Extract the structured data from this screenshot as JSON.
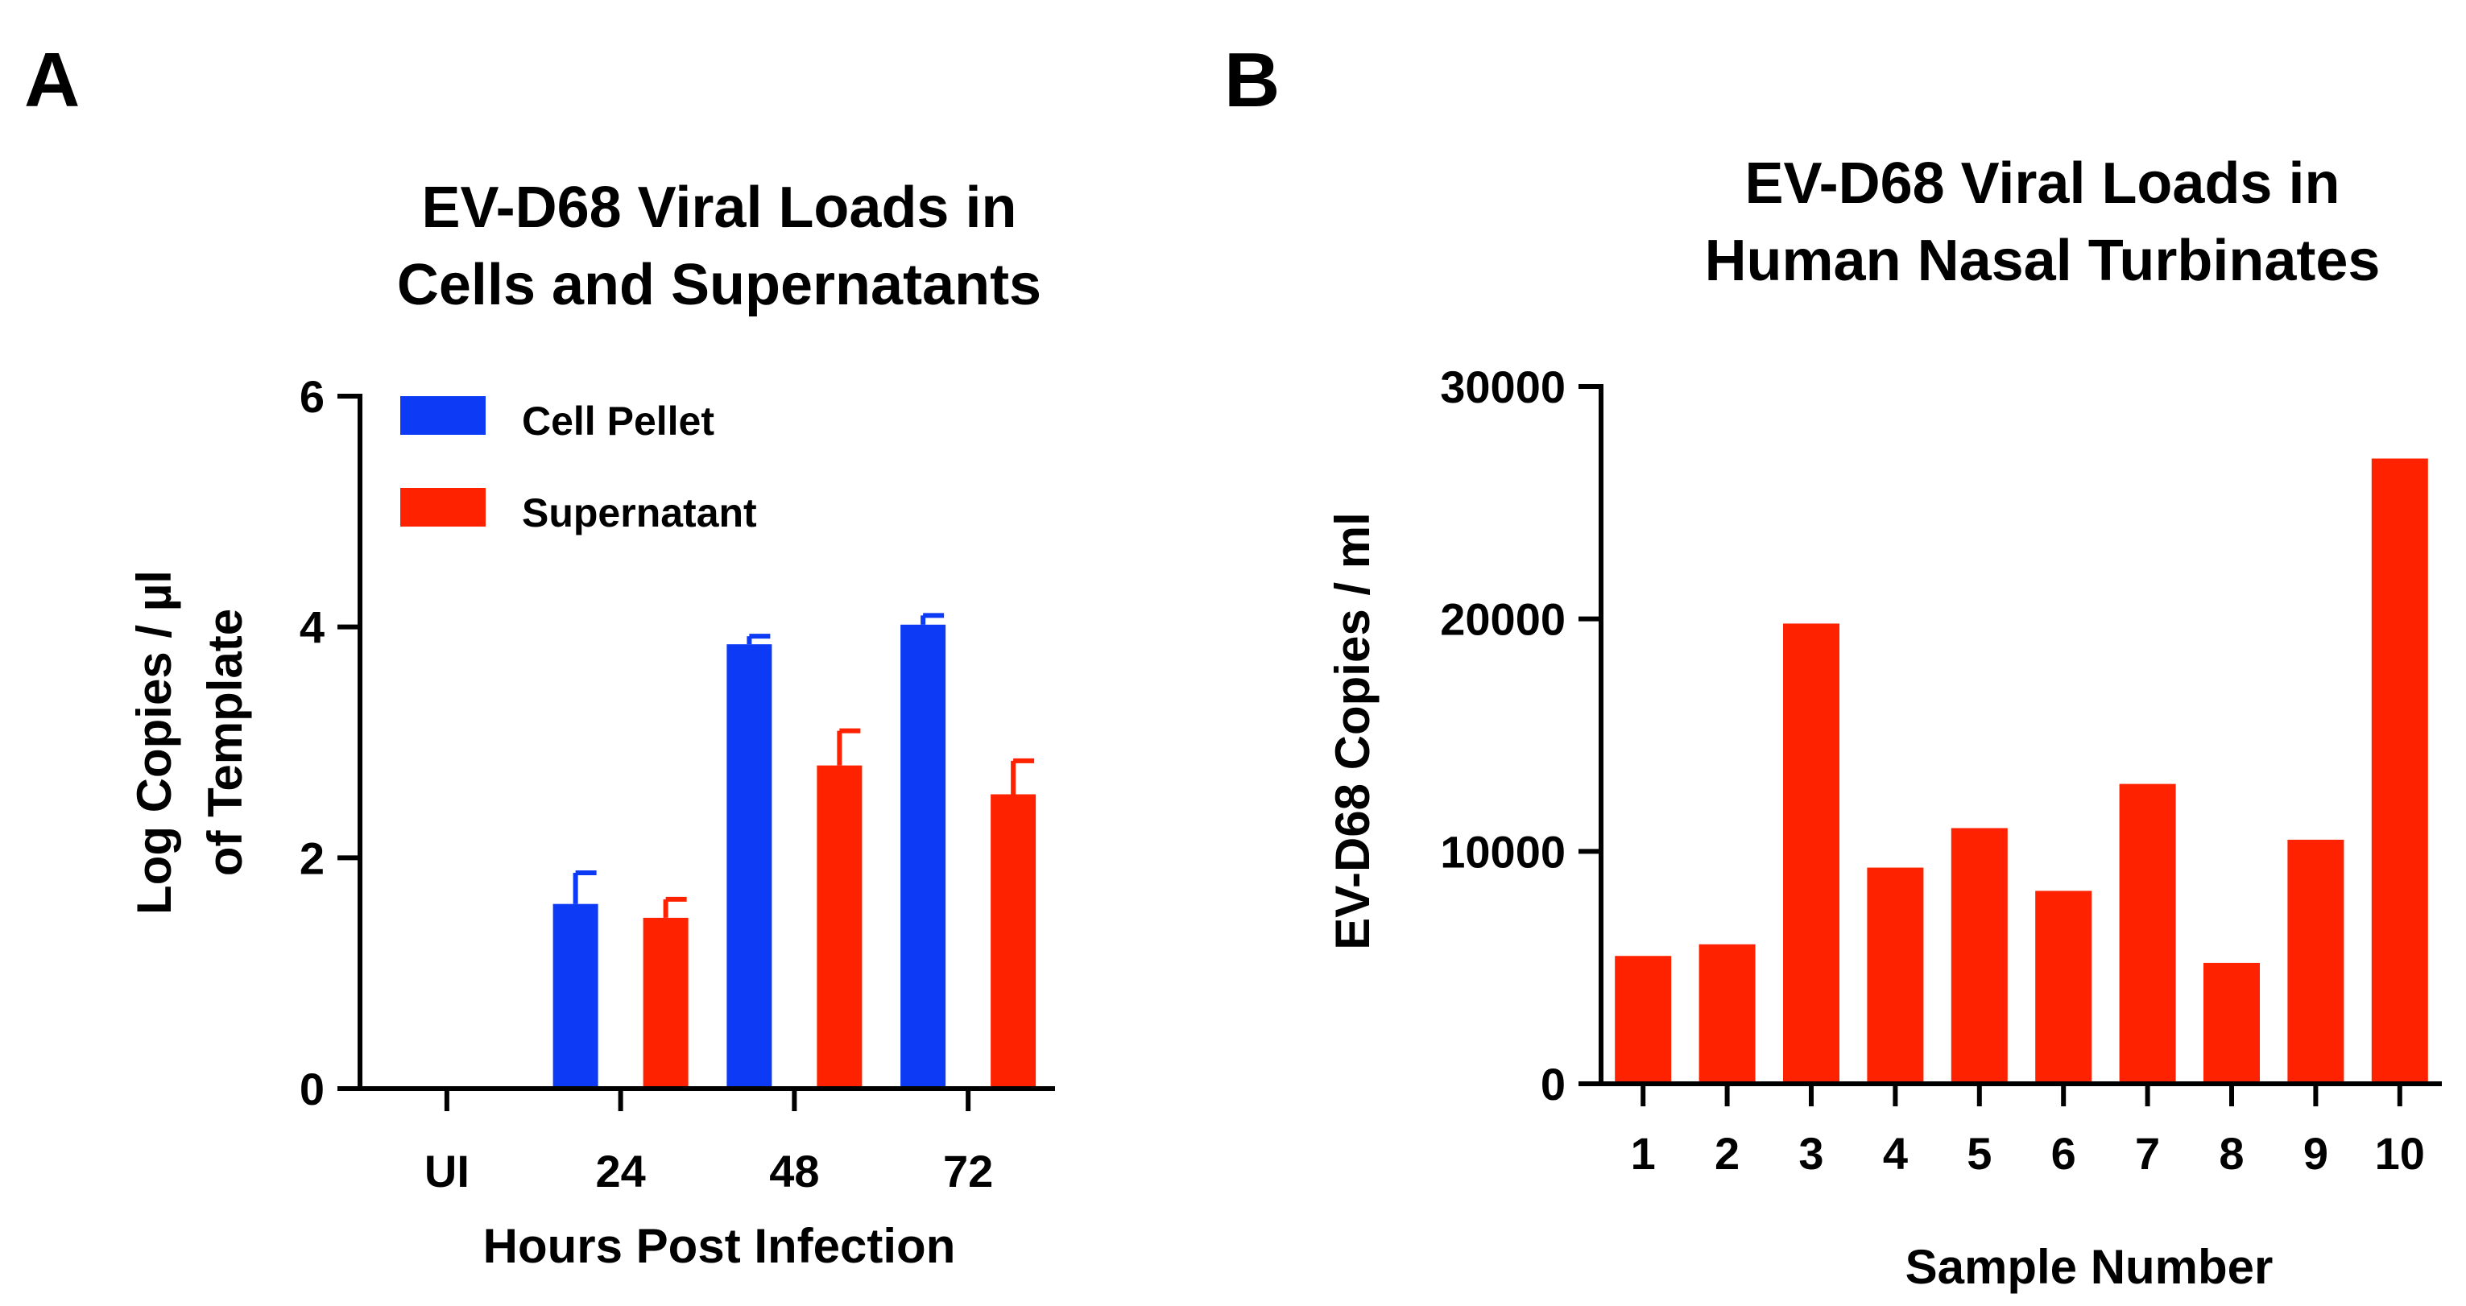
{
  "colors": {
    "cell_pellet": "#0d3bf5",
    "supernatant": "#ff2200",
    "axis": "#000000"
  },
  "chart_data": [
    {
      "panel": "A",
      "type": "bar",
      "title_lines": [
        "EV-D68 Viral Loads in",
        "Cells and Supernatants"
      ],
      "xlabel": "Hours Post Infection",
      "ylabel_lines": [
        "Log Copies / µl",
        "of Template"
      ],
      "categories": [
        "UI",
        "24",
        "48",
        "72"
      ],
      "ylim": [
        0,
        6
      ],
      "yticks": [
        "0",
        "2",
        "4",
        "6"
      ],
      "legend_position": "top-left",
      "series": [
        {
          "name": "Cell Pellet",
          "values": [
            0,
            1.6,
            3.85,
            4.02
          ],
          "errors": [
            0,
            0.27,
            0.07,
            0.08
          ]
        },
        {
          "name": "Supernatant",
          "values": [
            0,
            1.48,
            2.8,
            2.55
          ],
          "errors": [
            0,
            0.16,
            0.3,
            0.29
          ]
        }
      ]
    },
    {
      "panel": "B",
      "type": "bar",
      "title_lines": [
        "EV-D68 Viral Loads in",
        "Human Nasal Turbinates"
      ],
      "xlabel": "Sample Number",
      "ylabel_lines": [
        "EV-D68 Copies / ml"
      ],
      "categories": [
        "1",
        "2",
        "3",
        "4",
        "5",
        "6",
        "7",
        "8",
        "9",
        "10"
      ],
      "ylim": [
        0,
        30000
      ],
      "yticks": [
        "0",
        "10000",
        "20000",
        "30000"
      ],
      "series": [
        {
          "name": "EV-D68 Copies / ml",
          "values": [
            5500,
            6000,
            19800,
            9300,
            11000,
            8300,
            12900,
            5200,
            10500,
            26900
          ]
        }
      ]
    }
  ]
}
